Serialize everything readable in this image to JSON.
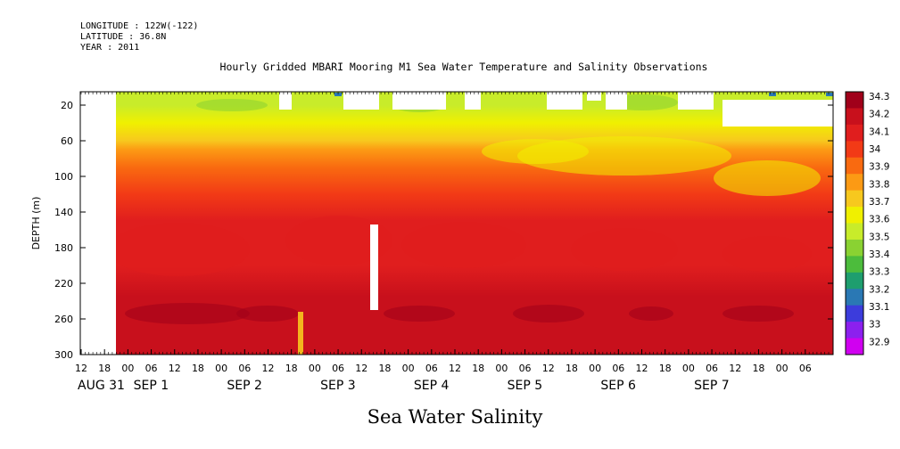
{
  "header": {
    "longitude": "LONGITUDE : 122W(-122)",
    "latitude": "LATITUDE : 36.8N",
    "year": "YEAR : 2011"
  },
  "chart_data": {
    "type": "heatmap",
    "title": "Hourly Gridded MBARI Mooring M1 Sea Water Temperature and Salinity Observations",
    "xlabel": "Sea Water Salinity",
    "ylabel": "DEPTH (m)",
    "ylim": [
      300,
      5
    ],
    "y_ticks": [
      20,
      60,
      100,
      140,
      180,
      220,
      260,
      300
    ],
    "x_hour_ticks": [
      "12",
      "18",
      "00",
      "06",
      "12",
      "18",
      "00",
      "06",
      "12",
      "18",
      "00",
      "06",
      "12",
      "18",
      "00",
      "06",
      "12",
      "18",
      "00",
      "06",
      "12",
      "18",
      "00",
      "06",
      "12",
      "18",
      "00",
      "06",
      "12",
      "18",
      "00",
      "06"
    ],
    "x_day_labels": [
      "AUG 31",
      "SEP  1",
      "SEP  2",
      "SEP  3",
      "SEP  4",
      "SEP  5",
      "SEP  6",
      "SEP  7"
    ],
    "colorbar_labels": [
      "34.3",
      "34.2",
      "34.1",
      "34",
      "33.9",
      "33.8",
      "33.7",
      "33.6",
      "33.5",
      "33.4",
      "33.3",
      "33.2",
      "33.1",
      "33",
      "32.9"
    ],
    "colorbar_colors": [
      "#a0001a",
      "#c8101c",
      "#e01e1e",
      "#f23a16",
      "#f96a10",
      "#fc9a14",
      "#f7c81e",
      "#f0f000",
      "#c8ec2a",
      "#8ad232",
      "#4cbc3c",
      "#1e9e6e",
      "#2a78b4",
      "#3c3cdc",
      "#8c20ee",
      "#d000f0"
    ],
    "salinity_profile": [
      {
        "depth": 5,
        "value": 33.55
      },
      {
        "depth": 20,
        "value": 33.55
      },
      {
        "depth": 40,
        "value": 33.62
      },
      {
        "depth": 60,
        "value": 33.72
      },
      {
        "depth": 70,
        "value": 33.85
      },
      {
        "depth": 90,
        "value": 33.93
      },
      {
        "depth": 120,
        "value": 34.02
      },
      {
        "depth": 150,
        "value": 34.1
      },
      {
        "depth": 200,
        "value": 34.17
      },
      {
        "depth": 235,
        "value": 34.22
      },
      {
        "depth": 255,
        "value": 34.28
      },
      {
        "depth": 275,
        "value": 34.25
      },
      {
        "depth": 300,
        "value": 34.22
      }
    ]
  }
}
